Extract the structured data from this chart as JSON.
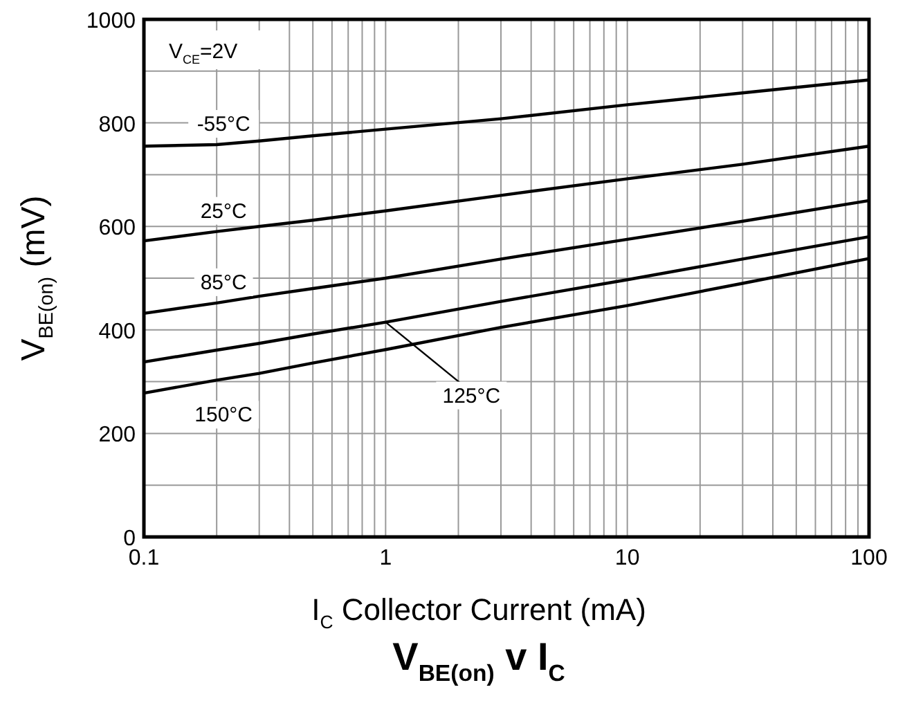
{
  "chart_data": {
    "type": "line",
    "title": "V$_{BE(on)}$ v I$_{C}$",
    "xlabel": "I$_{C}$   Collector Current (mA)",
    "ylabel": "V$_{BE(on)}$  (mV)",
    "log": "x",
    "grid": true,
    "marker": "none",
    "line_style": "solid",
    "annotations": [
      "V$_{CE}$=2V"
    ],
    "xlim": [
      0.1,
      100
    ],
    "ylim": [
      0,
      1000
    ],
    "xticks": [
      0.1,
      {
        "value": 0.2,
        "label": null
      },
      {
        "value": 0.3,
        "label": null
      },
      {
        "value": 0.4,
        "label": null
      },
      {
        "value": 0.5,
        "label": null
      },
      {
        "value": 0.6,
        "label": null
      },
      {
        "value": 0.7,
        "label": null
      },
      {
        "value": 0.8,
        "label": null
      },
      {
        "value": 0.9,
        "label": null
      },
      1,
      {
        "value": 2,
        "label": null
      },
      {
        "value": 3,
        "label": null
      },
      {
        "value": 4,
        "label": null
      },
      {
        "value": 5,
        "label": null
      },
      {
        "value": 6,
        "label": null
      },
      {
        "value": 7,
        "label": null
      },
      {
        "value": 8,
        "label": null
      },
      {
        "value": 9,
        "label": null
      },
      10,
      {
        "value": 20,
        "label": null
      },
      {
        "value": 30,
        "label": null
      },
      {
        "value": 40,
        "label": null
      },
      {
        "value": 50,
        "label": null
      },
      {
        "value": 60,
        "label": null
      },
      {
        "value": 70,
        "label": null
      },
      {
        "value": 80,
        "label": null
      },
      {
        "value": 90,
        "label": null
      },
      100
    ],
    "yticks": [
      0,
      {
        "value": 100,
        "label": null
      },
      200,
      {
        "value": 300,
        "label": null
      },
      400,
      {
        "value": 500,
        "label": null
      },
      600,
      {
        "value": 700,
        "label": null
      },
      800,
      {
        "value": 900,
        "label": null
      },
      1000
    ],
    "x": [
      0.1,
      0.2,
      0.3,
      0.5,
      1,
      3,
      10,
      30,
      100
    ],
    "series": [
      {
        "name": "-55°C",
        "color": "#000000",
        "values": [
          755,
          758,
          765,
          775,
          788,
          808,
          835,
          858,
          883
        ]
      },
      {
        "name": "25°C",
        "color": "#000000",
        "values": [
          572,
          590,
          600,
          612,
          630,
          660,
          692,
          720,
          755
        ]
      },
      {
        "name": "85°C",
        "color": "#000000",
        "values": [
          432,
          452,
          465,
          480,
          500,
          537,
          575,
          610,
          650
        ]
      },
      {
        "name": "125°C",
        "color": "#000000",
        "values": [
          338,
          361,
          374,
          392,
          415,
          455,
          497,
          537,
          580
        ]
      },
      {
        "name": "150°C",
        "color": "#000000",
        "values": [
          278,
          303,
          316,
          336,
          362,
          405,
          447,
          490,
          538
        ]
      }
    ]
  }
}
